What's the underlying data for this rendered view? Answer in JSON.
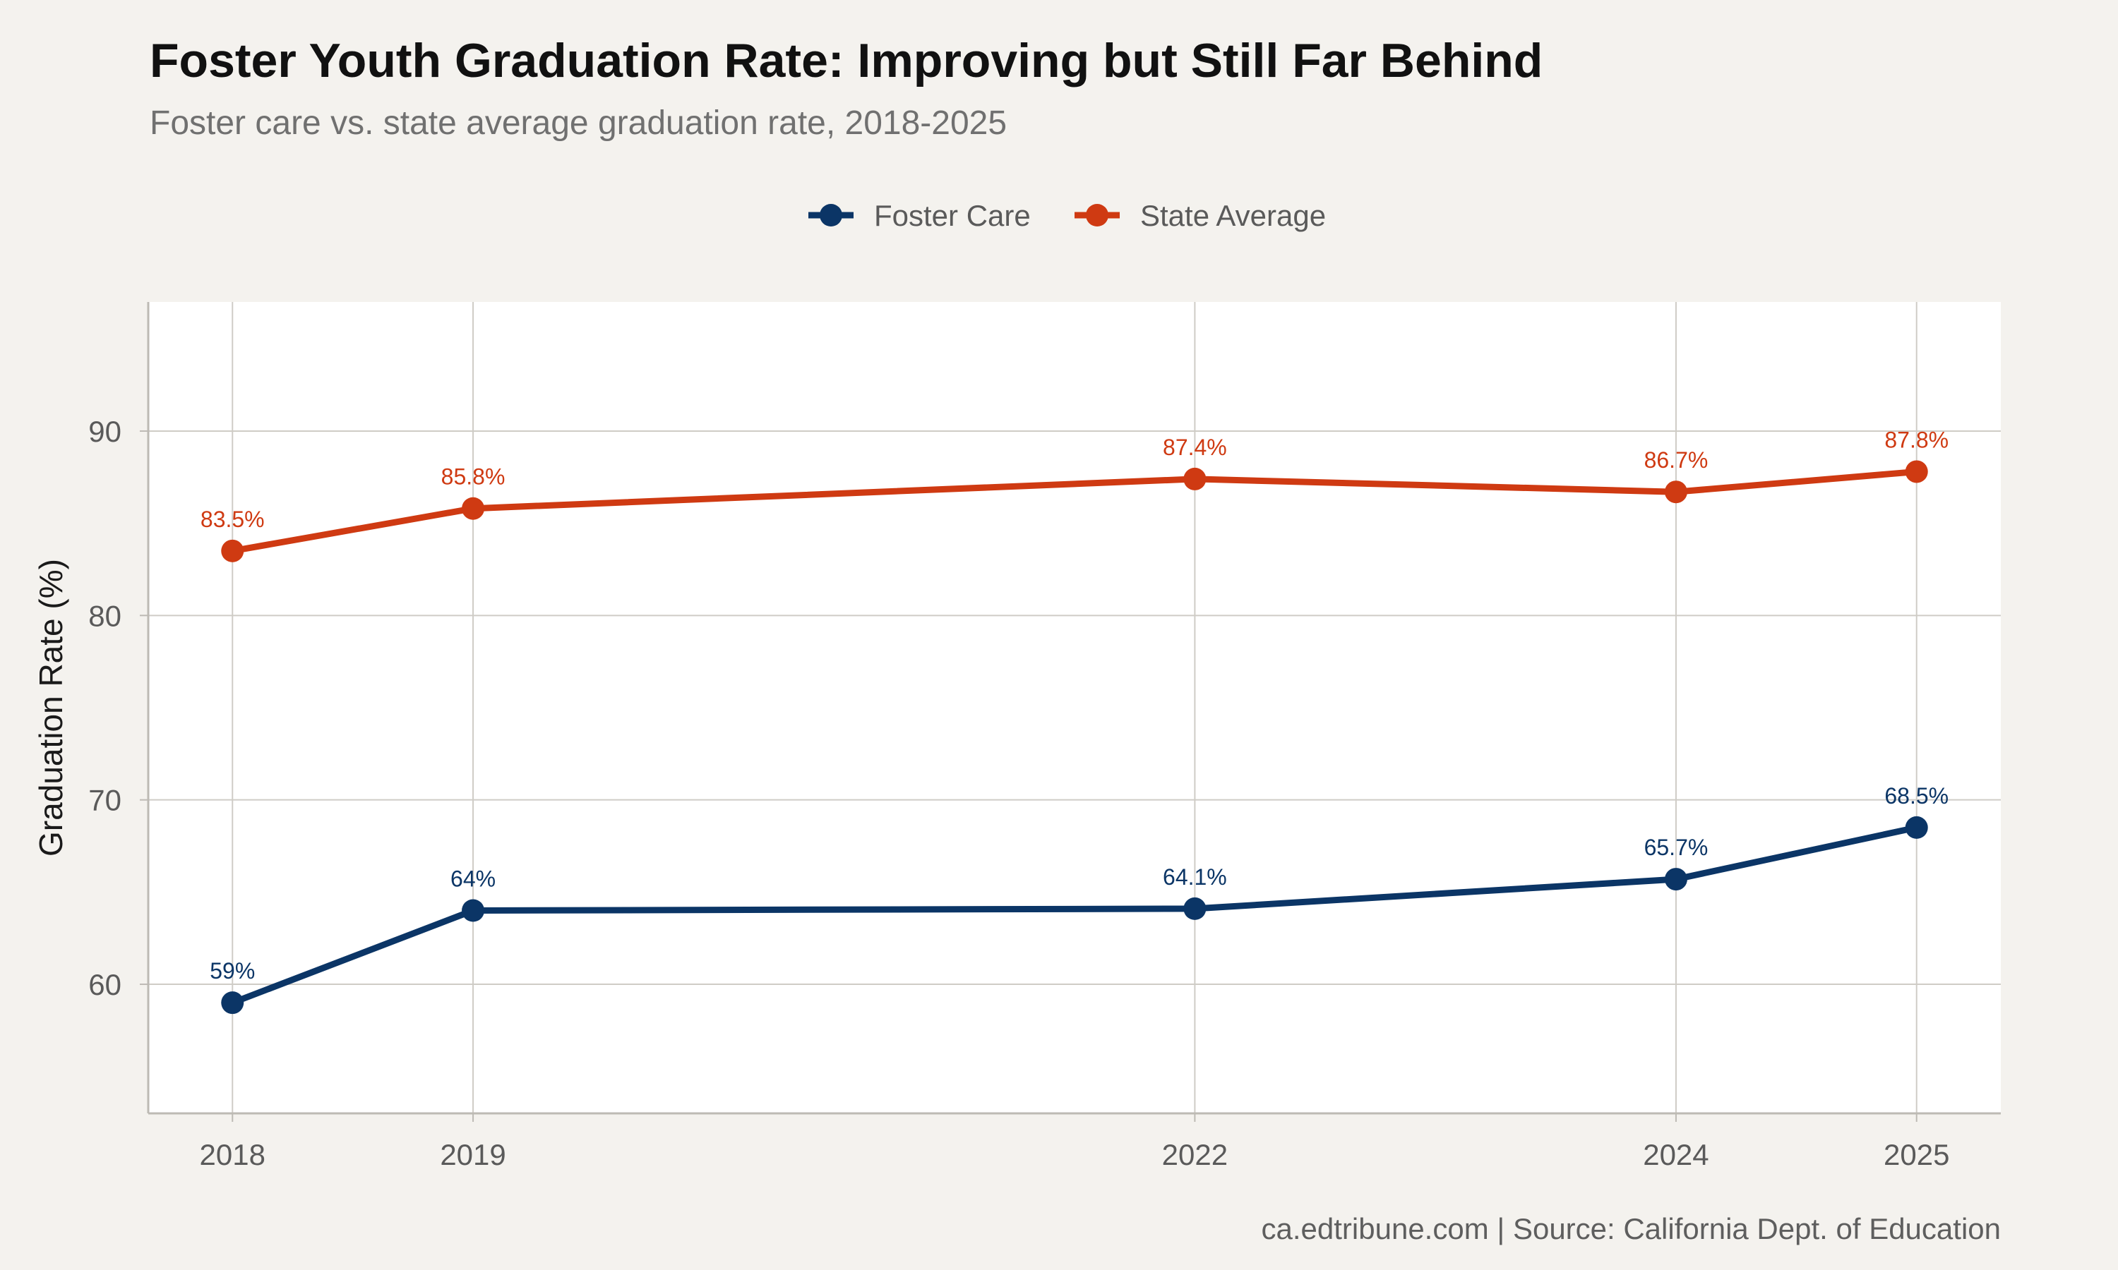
{
  "chart_data": {
    "type": "line",
    "title": "Foster Youth Graduation Rate: Improving but Still Far Behind",
    "subtitle": "Foster care vs. state average graduation rate, 2018-2025",
    "caption": "ca.edtribune.com | Source: California Dept. of Education",
    "xlabel": "",
    "ylabel": "Graduation Rate (%)",
    "x": [
      2018,
      2019,
      2022,
      2024,
      2025
    ],
    "x_tick_labels": [
      "2018",
      "2019",
      "2022",
      "2024",
      "2025"
    ],
    "xlim": [
      2017.65,
      2025.35
    ],
    "y_ticks": [
      60,
      70,
      80,
      90
    ],
    "y_tick_labels": [
      "60",
      "70",
      "80",
      "90"
    ],
    "ylim": [
      53,
      97
    ],
    "grid": true,
    "legend_position": "top-center",
    "series": [
      {
        "name": "Foster Care",
        "color": "#0b3566",
        "values": [
          59,
          64,
          64.1,
          65.7,
          68.5
        ],
        "labels": [
          "59%",
          "64%",
          "64.1%",
          "65.7%",
          "68.5%"
        ]
      },
      {
        "name": "State Average",
        "color": "#cf3a12",
        "values": [
          83.5,
          85.8,
          87.4,
          86.7,
          87.8
        ],
        "labels": [
          "83.5%",
          "85.8%",
          "87.4%",
          "86.7%",
          "87.8%"
        ]
      }
    ]
  }
}
